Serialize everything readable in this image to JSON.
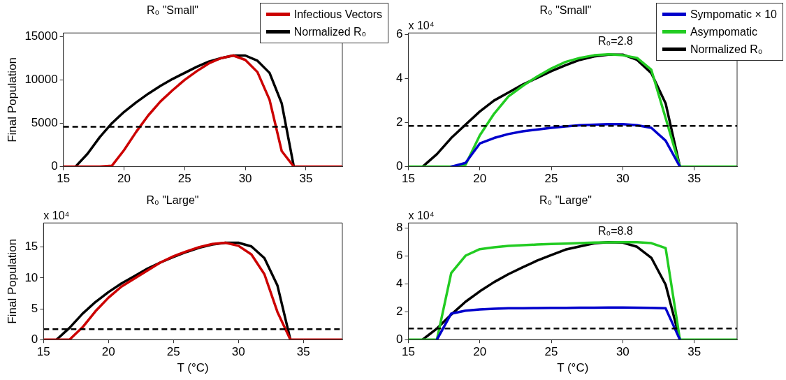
{
  "chart_data": [
    {
      "type": "line",
      "title": "R₀ \"Small\"",
      "ylabel": "Final Population",
      "x": [
        15,
        16,
        17,
        18,
        19,
        20,
        21,
        22,
        23,
        24,
        25,
        26,
        27,
        28,
        29,
        30,
        31,
        32,
        33,
        34,
        35,
        36,
        37,
        38
      ],
      "xlim": [
        15,
        38
      ],
      "xticks": [
        15,
        20,
        25,
        30,
        35
      ],
      "ylim": [
        0,
        15400
      ],
      "yticks": [
        0,
        5000,
        10000,
        15000
      ],
      "legend": "top right",
      "series": [
        {
          "name": "Infectious Vectors",
          "color": "#cc0000",
          "values": [
            0,
            0,
            0,
            0,
            100,
            1900,
            4000,
            5900,
            7500,
            8800,
            10000,
            11000,
            11900,
            12500,
            12800,
            12300,
            10900,
            7700,
            1800,
            0,
            0,
            0,
            0,
            0
          ]
        },
        {
          "name": "Normalized R₀",
          "color": "#000000",
          "values": [
            null,
            0,
            1500,
            3400,
            5000,
            6300,
            7400,
            8400,
            9300,
            10100,
            10800,
            11500,
            12100,
            12500,
            12800,
            12800,
            12200,
            10800,
            7300,
            0,
            null,
            null,
            null,
            null
          ]
        }
      ],
      "ref_lines": [
        {
          "axis": "y",
          "value": 4600,
          "color": "#000000",
          "line_style": "dashed"
        }
      ]
    },
    {
      "type": "line",
      "title": "R₀ \"Small\"",
      "x": [
        15,
        16,
        17,
        18,
        19,
        20,
        21,
        22,
        23,
        24,
        25,
        26,
        27,
        28,
        29,
        30,
        31,
        32,
        33,
        34,
        35,
        36,
        37,
        38
      ],
      "xlim": [
        15,
        38
      ],
      "xticks": [
        15,
        20,
        25,
        30,
        35
      ],
      "ylim": [
        0,
        6.06
      ],
      "yticks": [
        0,
        2,
        4,
        6
      ],
      "legend": "top right",
      "series": [
        {
          "name": "Sympomatic × 10",
          "color": "#0000cc",
          "values": [
            null,
            null,
            null,
            0,
            0.17,
            1.05,
            1.3,
            1.48,
            1.6,
            1.68,
            1.76,
            1.82,
            1.88,
            1.9,
            1.93,
            1.93,
            1.88,
            1.76,
            1.18,
            0,
            null,
            null,
            null,
            null
          ]
        },
        {
          "name": "Asympomatic",
          "color": "#22cc22",
          "values": [
            0,
            0,
            0,
            0,
            0.08,
            1.42,
            2.4,
            3.18,
            3.66,
            4.08,
            4.45,
            4.75,
            4.93,
            5.05,
            5.09,
            5.05,
            4.93,
            4.39,
            2.2,
            0,
            0,
            0,
            0,
            0
          ]
        },
        {
          "name": "Normalized R₀",
          "color": "#000000",
          "values": [
            null,
            0,
            0.57,
            1.3,
            1.9,
            2.5,
            3.0,
            3.36,
            3.72,
            4.02,
            4.33,
            4.6,
            4.84,
            5.0,
            5.08,
            5.08,
            4.84,
            4.24,
            2.87,
            0,
            null,
            null,
            null,
            null
          ]
        }
      ],
      "ref_lines": [
        {
          "axis": "y",
          "value": 1.85,
          "color": "#000000",
          "line_style": "dashed"
        }
      ],
      "annotations": [
        "x 10⁴",
        "R₀=2.8"
      ]
    },
    {
      "type": "line",
      "title": "R₀ \"Large\"",
      "xlabel": "T (°C)",
      "ylabel": "Final Population",
      "x": [
        15,
        16,
        17,
        18,
        19,
        20,
        21,
        22,
        23,
        24,
        25,
        26,
        27,
        28,
        29,
        30,
        31,
        32,
        33,
        34,
        35,
        36,
        37,
        38
      ],
      "xlim": [
        15,
        38
      ],
      "xticks": [
        15,
        20,
        25,
        30,
        35
      ],
      "ylim": [
        0,
        18.9
      ],
      "yticks": [
        0,
        5,
        10,
        15
      ],
      "series": [
        {
          "color": "#cc0000",
          "values": [
            0,
            0,
            0,
            2.0,
            4.6,
            6.8,
            8.6,
            9.9,
            11.2,
            12.5,
            13.5,
            14.3,
            15.0,
            15.5,
            15.7,
            15.2,
            13.8,
            10.6,
            4.5,
            0,
            0,
            0,
            0,
            0
          ]
        },
        {
          "color": "#000000",
          "values": [
            null,
            0,
            1.9,
            4.2,
            6.1,
            7.7,
            9.1,
            10.3,
            11.5,
            12.5,
            13.4,
            14.2,
            14.9,
            15.4,
            15.7,
            15.7,
            15.1,
            13.2,
            8.8,
            0,
            null,
            null,
            null,
            null
          ]
        }
      ],
      "ref_lines": [
        {
          "axis": "y",
          "value": 1.7,
          "color": "#000000",
          "line_style": "dashed"
        }
      ],
      "annotations": [
        "x 10⁴"
      ]
    },
    {
      "type": "line",
      "title": "R₀ \"Large\"",
      "xlabel": "T (°C)",
      "x": [
        15,
        16,
        17,
        18,
        19,
        20,
        21,
        22,
        23,
        24,
        25,
        26,
        27,
        28,
        29,
        30,
        31,
        32,
        33,
        34,
        35,
        36,
        37,
        38
      ],
      "xlim": [
        15,
        38
      ],
      "xticks": [
        15,
        20,
        25,
        30,
        35
      ],
      "ylim": [
        0,
        8.38
      ],
      "yticks": [
        0,
        2,
        4,
        6,
        8
      ],
      "series": [
        {
          "color": "#0000cc",
          "values": [
            null,
            null,
            0,
            1.87,
            2.08,
            2.17,
            2.22,
            2.25,
            2.26,
            2.27,
            2.28,
            2.28,
            2.29,
            2.29,
            2.3,
            2.3,
            2.29,
            2.28,
            2.25,
            0,
            null,
            null,
            null,
            null
          ]
        },
        {
          "color": "#22cc22",
          "values": [
            0,
            0,
            0,
            4.78,
            6.03,
            6.5,
            6.63,
            6.73,
            6.78,
            6.83,
            6.87,
            6.9,
            6.93,
            6.97,
            6.98,
            7.0,
            7.0,
            6.93,
            6.58,
            0,
            0,
            0,
            0,
            0
          ]
        },
        {
          "color": "#000000",
          "values": [
            null,
            0,
            0.8,
            1.8,
            2.72,
            3.47,
            4.13,
            4.7,
            5.2,
            5.67,
            6.08,
            6.47,
            6.7,
            6.92,
            7.0,
            6.97,
            6.67,
            5.88,
            3.95,
            0,
            null,
            null,
            null,
            null
          ]
        }
      ],
      "ref_lines": [
        {
          "axis": "y",
          "value": 0.8,
          "color": "#000000",
          "line_style": "dashed"
        }
      ],
      "annotations": [
        "x 10⁴",
        "R₀=8.8"
      ]
    }
  ]
}
